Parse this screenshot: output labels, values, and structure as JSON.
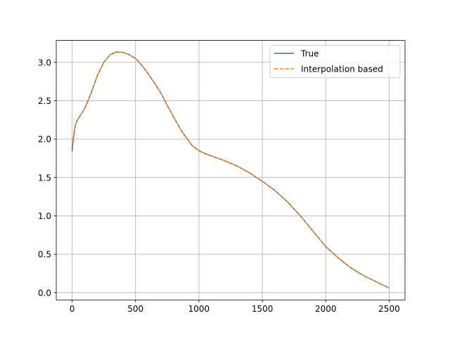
{
  "chart_data": {
    "type": "line",
    "title": "",
    "xlabel": "",
    "ylabel": "",
    "xlim": [
      -125,
      2625
    ],
    "ylim": [
      -0.095,
      3.285
    ],
    "grid": true,
    "legend_position": "top-right",
    "x_ticks": [
      0,
      500,
      1000,
      1500,
      2000,
      2500
    ],
    "x_tick_labels": [
      "0",
      "500",
      "1000",
      "1500",
      "2000",
      "2500"
    ],
    "y_ticks": [
      0.0,
      0.5,
      1.0,
      1.5,
      2.0,
      2.5,
      3.0
    ],
    "y_tick_labels": [
      "0.0",
      "0.5",
      "1.0",
      "1.5",
      "2.0",
      "2.5",
      "3.0"
    ],
    "series": [
      {
        "name": "True",
        "color": "#1f77b4",
        "style": "solid",
        "x": [
          0,
          5,
          10,
          15,
          20,
          30,
          50,
          100,
          150,
          200,
          250,
          300,
          350,
          400,
          450,
          500,
          550,
          600,
          650,
          700,
          750,
          800,
          850,
          900,
          950,
          1000,
          1050,
          1100,
          1150,
          1200,
          1300,
          1400,
          1500,
          1600,
          1700,
          1800,
          1900,
          2000,
          2100,
          2200,
          2300,
          2400,
          2500
        ],
        "values": [
          1.84,
          1.95,
          2.02,
          2.05,
          2.13,
          2.21,
          2.27,
          2.4,
          2.6,
          2.83,
          3.0,
          3.1,
          3.135,
          3.13,
          3.1,
          3.05,
          2.96,
          2.85,
          2.73,
          2.6,
          2.44,
          2.29,
          2.14,
          2.02,
          1.91,
          1.85,
          1.81,
          1.78,
          1.75,
          1.72,
          1.65,
          1.56,
          1.45,
          1.33,
          1.18,
          1.0,
          0.8,
          0.6,
          0.45,
          0.32,
          0.22,
          0.14,
          0.06
        ]
      },
      {
        "name": "Interpolation based",
        "color": "#ff7f0e",
        "style": "dashed",
        "x": [
          0,
          5,
          10,
          15,
          20,
          30,
          50,
          100,
          150,
          200,
          250,
          300,
          350,
          400,
          450,
          500,
          550,
          600,
          650,
          700,
          750,
          800,
          850,
          900,
          950,
          1000,
          1050,
          1100,
          1150,
          1200,
          1300,
          1400,
          1500,
          1600,
          1700,
          1800,
          1900,
          2000,
          2100,
          2200,
          2300,
          2400,
          2500
        ],
        "values": [
          1.93,
          1.98,
          1.96,
          2.1,
          2.13,
          2.21,
          2.27,
          2.4,
          2.6,
          2.83,
          3.0,
          3.1,
          3.135,
          3.13,
          3.1,
          3.05,
          2.96,
          2.85,
          2.73,
          2.6,
          2.44,
          2.29,
          2.14,
          2.02,
          1.91,
          1.85,
          1.81,
          1.78,
          1.75,
          1.72,
          1.65,
          1.56,
          1.45,
          1.33,
          1.18,
          1.0,
          0.8,
          0.6,
          0.45,
          0.32,
          0.22,
          0.14,
          0.06
        ]
      }
    ]
  }
}
